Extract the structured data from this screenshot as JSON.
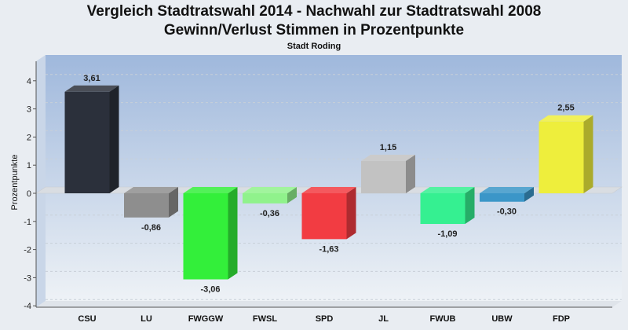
{
  "colors": {
    "plot_top": "#9fb8dc",
    "plot_bottom": "#eef2f6",
    "axis": "#555555"
  },
  "chart_data": {
    "type": "bar",
    "title": "Vergleich Stadtratswahl 2014 - Nachwahl zur Stadtratswahl 2008",
    "subtitle": "Gewinn/Verlust Stimmen in Prozentpunkte",
    "caption": "Stadt Roding",
    "xlabel": "",
    "ylabel": "Prozentpunkte",
    "ylim": [
      -4,
      4.5
    ],
    "yticks": [
      "4",
      "3",
      "2",
      "1",
      "0",
      "-1",
      "-2",
      "-3",
      "-4"
    ],
    "categories": [
      "CSU",
      "LU",
      "FWGGW",
      "FWSL",
      "SPD",
      "JL",
      "FWUB",
      "UBW",
      "FDP"
    ],
    "values": [
      3.61,
      -0.86,
      -3.06,
      -0.36,
      -1.63,
      1.15,
      -1.09,
      -0.3,
      2.55
    ],
    "value_labels": [
      "3,61",
      "-0,86",
      "-3,06",
      "-0,36",
      "-1,63",
      "1,15",
      "-1,09",
      "-0,30",
      "2,55"
    ],
    "bar_colors": [
      "#2b303b",
      "#8e8e8e",
      "#33ef3a",
      "#90f28c",
      "#f23c42",
      "#c2c2c2",
      "#35f091",
      "#3b96c8",
      "#eeee3c"
    ],
    "grid": true,
    "legend": "none"
  }
}
